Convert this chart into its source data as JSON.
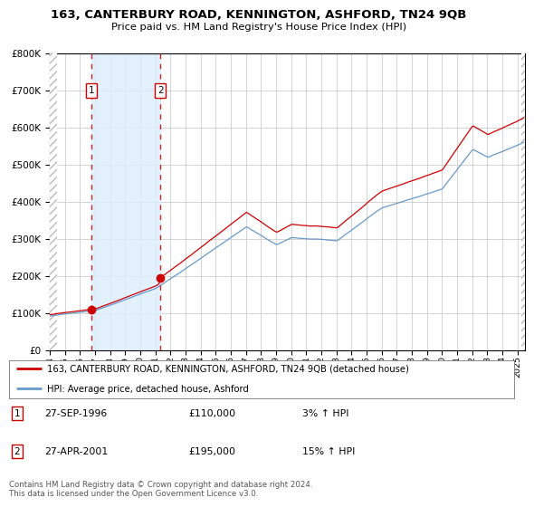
{
  "title": "163, CANTERBURY ROAD, KENNINGTON, ASHFORD, TN24 9QB",
  "subtitle": "Price paid vs. HM Land Registry's House Price Index (HPI)",
  "legend_label_red": "163, CANTERBURY ROAD, KENNINGTON, ASHFORD, TN24 9QB (detached house)",
  "legend_label_blue": "HPI: Average price, detached house, Ashford",
  "transaction1_date": "27-SEP-1996",
  "transaction1_price": 110000,
  "transaction1_pct": "3% ↑ HPI",
  "transaction2_date": "27-APR-2001",
  "transaction2_price": 195000,
  "transaction2_pct": "15% ↑ HPI",
  "transaction1_year": 1996.75,
  "transaction2_year": 2001.33,
  "footer": "Contains HM Land Registry data © Crown copyright and database right 2024.\nThis data is licensed under the Open Government Licence v3.0.",
  "ylim": [
    0,
    800000
  ],
  "xlim_start": 1994.0,
  "xlim_end": 2025.5,
  "background_color": "#ffffff",
  "plot_bg_color": "#ffffff",
  "blue_fill_color": "#ddeeff",
  "grid_color": "#cccccc",
  "red_line_color": "#cc0000",
  "blue_line_color": "#6699cc",
  "ownership_fill_color": "#ddeeff"
}
